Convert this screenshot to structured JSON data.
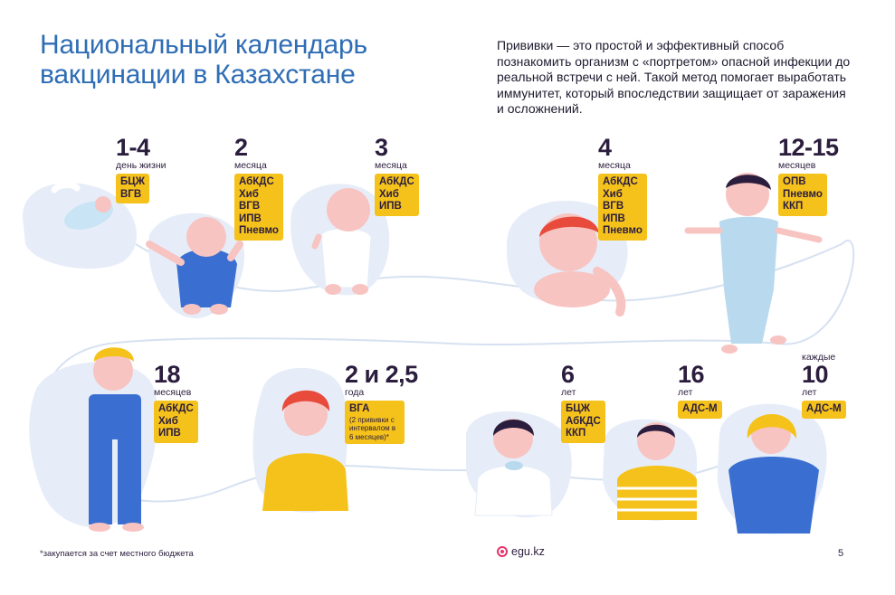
{
  "header": {
    "title": "Национальный календарь вакцинации в Казахстане",
    "intro": "Прививки — это простой и эффективный способ познакомить организм с «портретом» опасной инфекции до реальной встречи с ней. Такой метод помогает выработать иммунитет, который впоследствии защищает от заражения и осложнений."
  },
  "stages": [
    {
      "age": "1-4",
      "unit": "день жизни",
      "vaccines": [
        "БЦЖ",
        "ВГВ"
      ]
    },
    {
      "age": "2",
      "unit": "месяца",
      "vaccines": [
        "АбКДС",
        "Хиб",
        "ВГВ",
        "ИПВ",
        "Пневмо"
      ]
    },
    {
      "age": "3",
      "unit": "месяца",
      "vaccines": [
        "АбКДС",
        "Хиб",
        "ИПВ"
      ]
    },
    {
      "age": "4",
      "unit": "месяца",
      "vaccines": [
        "АбКДС",
        "Хиб",
        "ВГВ",
        "ИПВ",
        "Пневмо"
      ]
    },
    {
      "age": "12-15",
      "unit": "месяцев",
      "vaccines": [
        "ОПВ",
        "Пневмо",
        "ККП"
      ]
    },
    {
      "age": "18",
      "unit": "месяцев",
      "vaccines": [
        "АбКДС",
        "Хиб",
        "ИПВ"
      ]
    },
    {
      "age": "2 и 2,5",
      "unit": "года",
      "vaccines": [
        "ВГА"
      ],
      "note": "(2 прививки с интервалом в 6 месяцев)*"
    },
    {
      "age": "6",
      "unit": "лет",
      "vaccines": [
        "БЦЖ",
        "АбКДС",
        "ККП"
      ]
    },
    {
      "age": "16",
      "unit": "лет",
      "vaccines": [
        "АДС-М"
      ]
    },
    {
      "age": "10",
      "pre": "каждые",
      "unit": "лет",
      "vaccines": [
        "АДС-М"
      ]
    }
  ],
  "footer": {
    "footnote": "*закупается за счет местного бюджета",
    "logo": "egu.kz",
    "page_number": "5"
  },
  "colors": {
    "title": "#2f6db5",
    "badge": "#f5c21b",
    "blob": "#e6edf8",
    "accent": "#e8326b"
  }
}
